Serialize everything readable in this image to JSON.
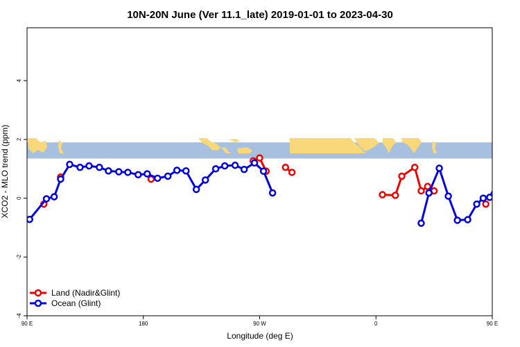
{
  "chart_data": {
    "type": "line",
    "title": "10N-20N June (Ver 11.1_late)   2019-01-01 to 2023-04-30",
    "xlabel": "Longitude (deg E)",
    "ylabel": "XCO2 - MLO trend (ppm)",
    "xlim": [
      90,
      450
    ],
    "ylim": [
      -4.0,
      5.8
    ],
    "x_ticks": [
      {
        "value": 90,
        "label": "90 E"
      },
      {
        "value": 180,
        "label": "180"
      },
      {
        "value": 270,
        "label": "90 W"
      },
      {
        "value": 360,
        "label": "0"
      },
      {
        "value": 450,
        "label": "90 E"
      },
      {
        "value": 540,
        "label": "180"
      }
    ],
    "y_ticks": [
      {
        "value": -4,
        "label": "-4"
      },
      {
        "value": -2,
        "label": "-2"
      },
      {
        "value": 0,
        "label": "0"
      },
      {
        "value": 2,
        "label": "2"
      },
      {
        "value": 4,
        "label": "4"
      }
    ],
    "map_band": {
      "y_min": 1.35,
      "y_max": 1.9
    },
    "legend_position": "bottom-left",
    "series": [
      {
        "name": "Land (Nadir&Glint)",
        "color": "#ee0000",
        "segments": [
          [
            [
              103,
              -0.2
            ]
          ],
          [
            [
              116,
              0.72
            ]
          ],
          [
            [
              186,
              0.65
            ]
          ],
          [
            [
              265,
              1.27
            ],
            [
              270,
              1.37
            ],
            [
              275,
              0.92
            ]
          ],
          [
            [
              290,
              1.05
            ],
            [
              295,
              0.88
            ]
          ],
          [
            [
              365,
              0.12
            ],
            [
              375,
              0.1
            ],
            [
              380,
              0.75
            ],
            [
              390,
              1.05
            ],
            [
              395,
              0.25
            ],
            [
              400,
              0.4
            ],
            [
              405,
              0.25
            ]
          ],
          [
            [
              445,
              -0.2
            ]
          ],
          [
            [
              466,
              0.72
            ]
          ]
        ]
      },
      {
        "name": "Ocean (Glint)",
        "color": "#0000dd",
        "segments": [
          [
            [
              92,
              -0.72
            ],
            [
              105,
              -0.02
            ],
            [
              111,
              0.05
            ],
            [
              116,
              0.65
            ],
            [
              123,
              1.15
            ],
            [
              131,
              1.05
            ],
            [
              138,
              1.1
            ],
            [
              146,
              1.05
            ],
            [
              153,
              0.93
            ],
            [
              161,
              0.9
            ],
            [
              168,
              0.88
            ],
            [
              176,
              0.8
            ],
            [
              183,
              0.83
            ],
            [
              191,
              0.68
            ],
            [
              199,
              0.75
            ],
            [
              206,
              0.95
            ],
            [
              213,
              0.93
            ],
            [
              221,
              0.3
            ],
            [
              228,
              0.62
            ],
            [
              236,
              1.0
            ],
            [
              243,
              1.1
            ],
            [
              251,
              1.12
            ],
            [
              258,
              0.98
            ],
            [
              266,
              1.2
            ],
            [
              273,
              0.92
            ],
            [
              280,
              0.18
            ]
          ],
          [
            [
              395,
              -0.85
            ],
            [
              401,
              0.18
            ],
            [
              409,
              1.02
            ],
            [
              416,
              0.07
            ],
            [
              423,
              -0.75
            ],
            [
              431,
              -0.73
            ],
            [
              438,
              -0.2
            ],
            [
              443,
              0.0
            ],
            [
              448,
              0.03
            ],
            [
              455,
              0.65
            ],
            [
              463,
              1.15
            ],
            [
              470,
              1.05
            ],
            [
              478,
              1.08
            ],
            [
              485,
              1.07
            ],
            [
              493,
              0.93
            ]
          ]
        ]
      }
    ]
  }
}
